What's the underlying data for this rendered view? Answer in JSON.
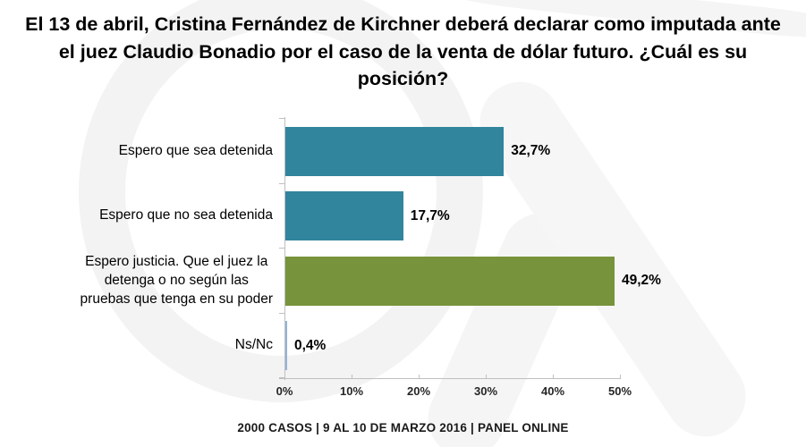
{
  "title": "El 13 de abril, Cristina Fernández de Kirchner deberá declarar como imputada ante el juez Claudio Bonadio por el caso de la venta de dólar futuro. ¿Cuál es su posición?",
  "footer": "2000 CASOS | 9 AL 10 DE MARZO 2016 | PANEL ONLINE",
  "colors": {
    "teal_bar": "#31859C",
    "green_bar": "#77933C",
    "light_blue_bar": "#95B3D7",
    "axis": "#BFBFBF",
    "text": "#000000"
  },
  "chart_data": {
    "type": "bar",
    "orientation": "horizontal",
    "title": "El 13 de abril, Cristina Fernández de Kirchner deberá declarar como imputada ante el juez Claudio Bonadio por el caso de la venta de dólar futuro. ¿Cuál es su posición?",
    "categories": [
      "Espero que sea detenida",
      "Espero que no sea detenida",
      "Espero justicia. Que el juez la\ndetenga o no según las\npruebas que tenga en su poder",
      "Ns/Nc"
    ],
    "values": [
      32.7,
      17.7,
      49.2,
      0.4
    ],
    "value_labels": [
      "32,7%",
      "17,7%",
      "49,2%",
      "0,4%"
    ],
    "bar_colors": [
      "#31859C",
      "#31859C",
      "#77933C",
      "#95B3D7"
    ],
    "x_ticks": [
      "0%",
      "10%",
      "20%",
      "30%",
      "40%",
      "50%"
    ],
    "xlim": [
      0,
      50
    ],
    "xlabel": "",
    "ylabel": "",
    "grid": false,
    "legend": false,
    "source_note": "2000 CASOS | 9 AL 10 DE MARZO 2016 | PANEL ONLINE"
  }
}
